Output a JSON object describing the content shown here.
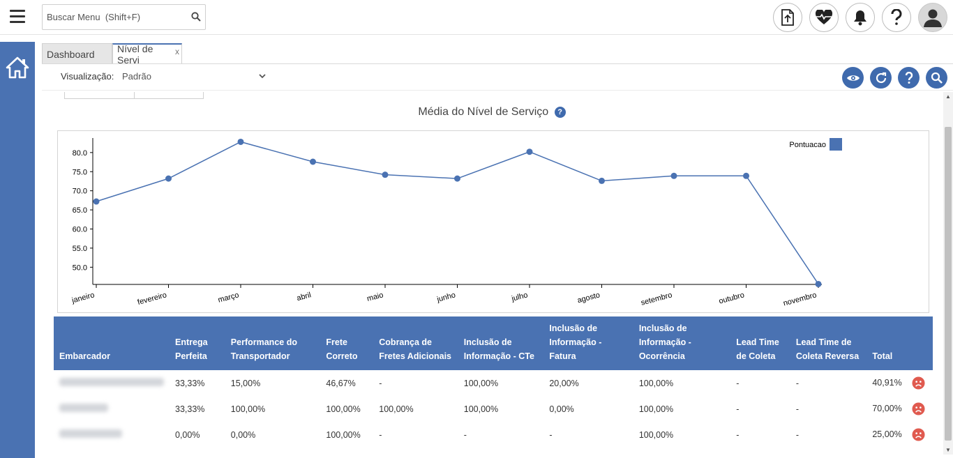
{
  "header": {
    "search_placeholder": "Buscar Menu  (Shift+F)",
    "icons": [
      "upload-file-icon",
      "heartbeat-icon",
      "bell-icon",
      "help-icon",
      "user-avatar-icon"
    ]
  },
  "tabs": [
    {
      "label": "Dashboard"
    },
    {
      "label": "Nível de Servi",
      "close": "x"
    }
  ],
  "toolbar": {
    "viz_label": "Visualização:",
    "viz_value": "Padrão"
  },
  "chart_data": {
    "type": "line",
    "title": "Média do Nível de Serviço",
    "help": "?",
    "categories": [
      "janeiro",
      "fevereiro",
      "março",
      "abril",
      "maio",
      "junho",
      "julho",
      "agosto",
      "setembro",
      "outubro",
      "novembro"
    ],
    "series": [
      {
        "name": "Pontuacao",
        "values": [
          67.2,
          73.2,
          82.8,
          77.6,
          74.2,
          73.2,
          80.2,
          72.6,
          73.9,
          73.9,
          45.6
        ],
        "color": "#4a72b2"
      }
    ],
    "y_ticks": [
      "80.0",
      "75.0",
      "70.0",
      "65.0",
      "60.0",
      "55.0",
      "50.0"
    ],
    "ylim": [
      45.5,
      83.8
    ],
    "legend_position": "top-right"
  },
  "table": {
    "headers": [
      "Embarcador",
      "Entrega Perfeita",
      "Performance do Transportador",
      "Frete Correto",
      "Cobrança de Fretes Adicionais",
      "Inclusão de Informação - CTe",
      "Inclusão de Informação - Fatura",
      "Inclusão de Informação - Ocorrência",
      "Lead Time de Coleta",
      "Lead Time de Coleta Reversa",
      "Total"
    ],
    "rows": [
      [
        "",
        "33,33%",
        "15,00%",
        "46,67%",
        "-",
        "100,00%",
        "20,00%",
        "100,00%",
        "-",
        "-",
        "40,91%"
      ],
      [
        "",
        "33,33%",
        "100,00%",
        "100,00%",
        "100,00%",
        "100,00%",
        "0,00%",
        "100,00%",
        "-",
        "-",
        "70,00%"
      ],
      [
        "",
        "0,00%",
        "0,00%",
        "100,00%",
        "-",
        "-",
        "-",
        "100,00%",
        "-",
        "-",
        "25,00%"
      ]
    ],
    "status_icon": "sad-face-icon",
    "status_color": "#e05a4f"
  },
  "colors": {
    "accent": "#4a72b2",
    "icon_blue": "#3f6aad"
  }
}
